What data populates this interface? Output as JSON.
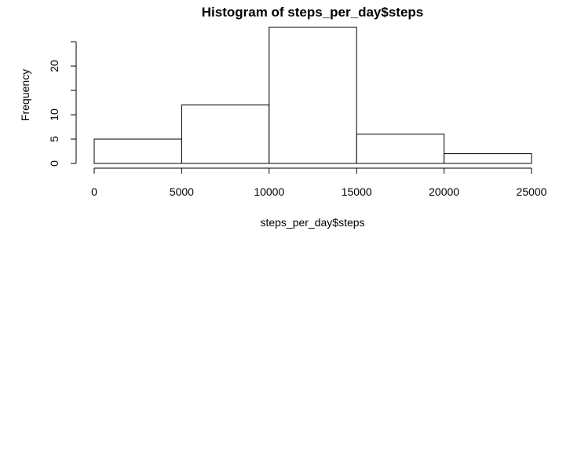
{
  "chart_data": {
    "type": "bar",
    "title": "Histogram of steps_per_day$steps",
    "xlabel": "steps_per_day$steps",
    "ylabel": "Frequency",
    "bins": [
      {
        "from": 0,
        "to": 5000,
        "count": 5
      },
      {
        "from": 5000,
        "to": 10000,
        "count": 12
      },
      {
        "from": 10000,
        "to": 15000,
        "count": 28
      },
      {
        "from": 15000,
        "to": 20000,
        "count": 6
      },
      {
        "from": 20000,
        "to": 25000,
        "count": 2
      }
    ],
    "xlim": [
      0,
      25000
    ],
    "ylim": [
      0,
      28
    ],
    "x_ticks": [
      0,
      5000,
      10000,
      15000,
      20000,
      25000
    ],
    "x_tick_labels": [
      "0",
      "5000",
      "10000",
      "15000",
      "20000",
      "25000"
    ],
    "y_ticks": [
      0,
      5,
      10,
      15,
      20,
      25
    ],
    "y_tick_labels": [
      "0",
      "5",
      "10",
      "",
      "20",
      ""
    ],
    "grid": false,
    "legend": "none",
    "colors": {
      "bar_fill": "#ffffff",
      "bar_stroke": "#000000",
      "axis": "#000000",
      "background": "#ffffff"
    }
  }
}
